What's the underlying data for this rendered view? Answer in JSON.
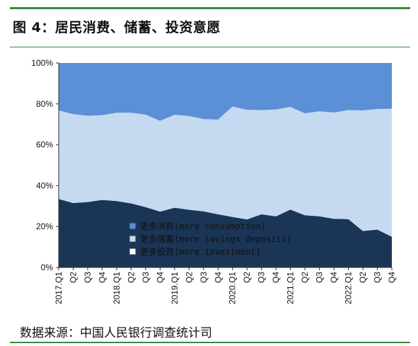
{
  "title": "图 4：居民消费、储蓄、投资意愿",
  "source": "数据来源：中国人民银行调查统计司",
  "colors": {
    "consumption": "#5b8fd6",
    "savings": "#c5d9f1",
    "investment": "#1b3556",
    "rule": "#3a8a3a"
  },
  "chart_data": {
    "type": "area",
    "stacked": true,
    "ylim": [
      0,
      100
    ],
    "yticks": [
      "0%",
      "20%",
      "40%",
      "60%",
      "80%",
      "100%"
    ],
    "categories": [
      "2017.Q1",
      "Q2",
      "Q3",
      "Q4",
      "2018.Q1",
      "Q2",
      "Q3",
      "Q4",
      "2019.Q1",
      "Q2",
      "Q3",
      "Q4",
      "2020.Q1",
      "Q2",
      "Q3",
      "Q4",
      "2021.Q1",
      "Q2",
      "Q3",
      "Q4",
      "2022.Q1",
      "Q2",
      "Q3",
      "Q4"
    ],
    "series": [
      {
        "name": "更多投资(more investment)",
        "key": "investment",
        "values": [
          33.5,
          31.5,
          32.0,
          33.0,
          32.5,
          31.3,
          29.5,
          27.3,
          29.2,
          28.2,
          27.4,
          26.0,
          24.7,
          23.5,
          26.0,
          25.0,
          28.3,
          25.5,
          25.0,
          23.8,
          23.6,
          17.8,
          18.5,
          15.0
        ]
      },
      {
        "name": "更多储蓄(more savings deposits)",
        "key": "savings",
        "values": [
          43.3,
          43.5,
          42.2,
          41.5,
          43.2,
          44.4,
          45.3,
          44.4,
          45.5,
          45.9,
          45.2,
          46.3,
          54.0,
          53.6,
          51.0,
          52.3,
          50.2,
          49.9,
          51.4,
          52.0,
          53.4,
          59.0,
          59.0,
          62.7
        ]
      },
      {
        "name": "更多消费(more consumption)",
        "key": "consumption",
        "values": [
          23.2,
          25.0,
          25.8,
          25.5,
          24.3,
          24.3,
          25.2,
          28.3,
          25.3,
          25.9,
          27.4,
          27.7,
          21.3,
          22.9,
          23.0,
          22.7,
          21.5,
          24.6,
          23.6,
          24.2,
          23.0,
          23.2,
          22.5,
          22.3
        ]
      }
    ],
    "legend": [
      "更多消费(more consumption)",
      "更多储蓄(more savings deposits)",
      "更多投资(more investment)"
    ],
    "legend_position": "lower-center-inside"
  }
}
